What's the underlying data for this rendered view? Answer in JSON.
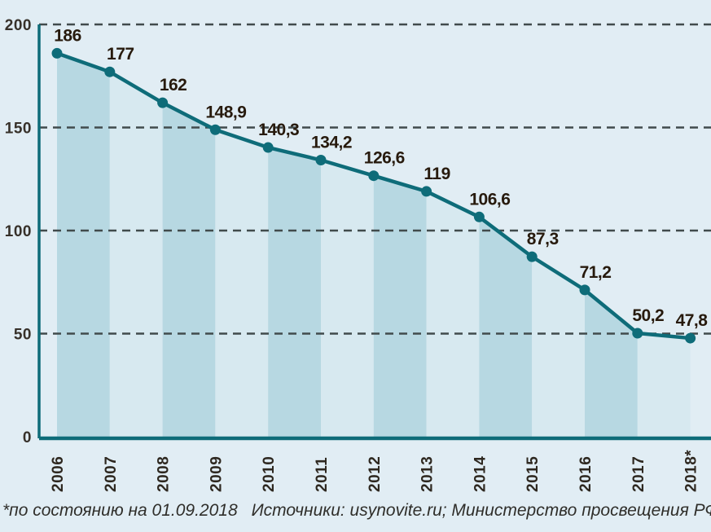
{
  "figure": {
    "background_color": "#e1edf4"
  },
  "chart_data": {
    "type": "line",
    "title": "",
    "xlabel": "",
    "ylabel": "",
    "categories": [
      "2006",
      "2007",
      "2008",
      "2009",
      "2010",
      "2011",
      "2012",
      "2013",
      "2014",
      "2015",
      "2016",
      "2017",
      "2018*"
    ],
    "values": [
      186,
      177,
      162,
      148.9,
      140.3,
      134.2,
      126.6,
      119,
      106.6,
      87.3,
      71.2,
      50.2,
      47.8
    ],
    "point_labels": [
      "186",
      "177",
      "162",
      "148,9",
      "140,3",
      "134,2",
      "126,6",
      "119",
      "106,6",
      "87,3",
      "71,2",
      "50,2",
      "47,8"
    ],
    "y_ticks": [
      0,
      50,
      100,
      150,
      200
    ],
    "ylim": [
      0,
      200
    ],
    "grid": "horizontal-dashed",
    "legend_position": "none",
    "area_fill": "alternating-vertical-bands",
    "colors": {
      "line": "#0e6c79",
      "point": "#0e6c79",
      "axis": "#0e6c79",
      "band_dark": "#b7d8e2",
      "band_light": "#d7e9f0",
      "gridline": "#414b4c",
      "value_label": "#271a0d",
      "tick_label": "#37312a",
      "year_label": "#2e2820",
      "footer_text": "#2f2e2a"
    }
  },
  "footer": {
    "note": "*по состоянию на 01.09.2018",
    "sources": "Источники: usynovite.ru; Министерство просвещения РФ"
  }
}
